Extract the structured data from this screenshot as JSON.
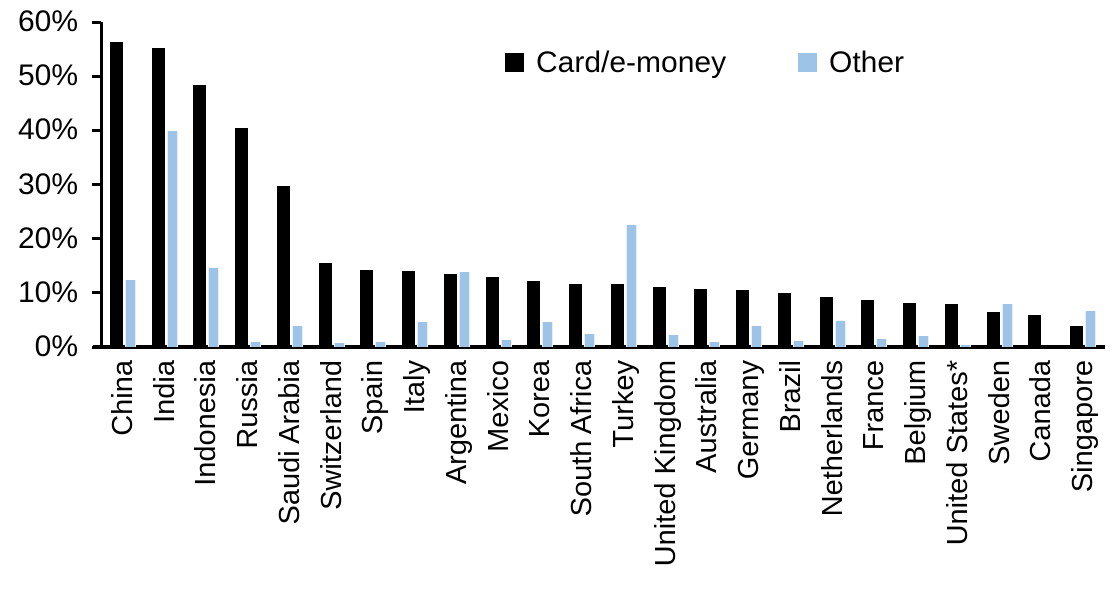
{
  "chart_data": {
    "type": "bar",
    "title": "",
    "xlabel": "",
    "ylabel": "",
    "ylim": [
      0,
      60
    ],
    "grid": false,
    "legend_position": "top-center",
    "categories": [
      "China",
      "India",
      "Indonesia",
      "Russia",
      "Saudi Arabia",
      "Switzerland",
      "Spain",
      "Italy",
      "Argentina",
      "Mexico",
      "Korea",
      "South Africa",
      "Turkey",
      "United Kingdom",
      "Australia",
      "Germany",
      "Brazil",
      "Netherlands",
      "France",
      "Belgium",
      "United States*",
      "Sweden",
      "Canada",
      "Singapore"
    ],
    "series": [
      {
        "name": "Card/e-money",
        "color": "#000000",
        "values": [
          56.4,
          55.2,
          48.3,
          40.5,
          29.8,
          15.6,
          14.2,
          14.1,
          13.4,
          13.0,
          12.2,
          11.7,
          11.6,
          11.1,
          10.8,
          10.6,
          10.0,
          9.3,
          8.7,
          8.2,
          7.9,
          6.5,
          6.0,
          3.9
        ]
      },
      {
        "name": "Other",
        "color": "#9DC3E6",
        "values": [
          12.3,
          39.8,
          14.5,
          1.0,
          3.9,
          0.8,
          1.0,
          4.6,
          13.8,
          1.3,
          4.7,
          2.4,
          22.5,
          2.3,
          1.0,
          3.9,
          1.2,
          4.8,
          1.5,
          2.0,
          0.3,
          8.0,
          0.0,
          6.6
        ]
      }
    ],
    "y_ticks": [
      {
        "value": 60,
        "label": "60%"
      },
      {
        "value": 50,
        "label": "50%"
      },
      {
        "value": 40,
        "label": "40%"
      },
      {
        "value": 30,
        "label": "30%"
      },
      {
        "value": 20,
        "label": "20%"
      },
      {
        "value": 10,
        "label": "10%"
      },
      {
        "value": 0,
        "label": "0%"
      }
    ]
  }
}
